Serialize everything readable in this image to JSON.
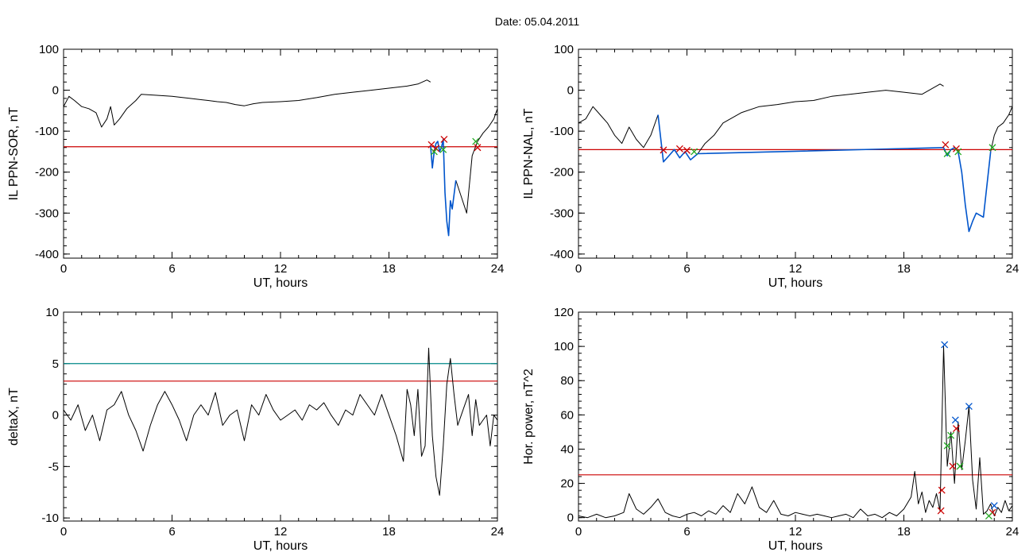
{
  "title": "Date:  05.04.2011",
  "chart_data": [
    {
      "type": "line",
      "title": "",
      "xlabel": "UT, hours",
      "ylabel": "IL PPN-SOR, nT",
      "xlim": [
        0,
        24
      ],
      "ylim": [
        -410,
        100
      ],
      "xticks": [
        0,
        6,
        12,
        18,
        24
      ],
      "yticks": [
        -400,
        -300,
        -200,
        -100,
        0,
        100
      ],
      "grid": false,
      "series": [
        {
          "color": "#000000",
          "x": [
            0,
            0.3,
            0.6,
            1,
            1.4,
            1.8,
            2.1,
            2.4,
            2.6,
            2.8,
            3.1,
            3.5,
            4,
            4.3,
            5,
            6,
            7,
            8,
            8.5,
            9,
            9.5,
            10,
            10.5,
            11,
            12,
            13,
            14,
            15,
            16,
            17,
            18,
            19,
            19.6,
            20.1,
            20.3
          ],
          "y": [
            -40,
            -15,
            -25,
            -40,
            -45,
            -55,
            -90,
            -70,
            -40,
            -85,
            -70,
            -45,
            -25,
            -10,
            -12,
            -15,
            -20,
            -25,
            -28,
            -30,
            -35,
            -38,
            -33,
            -30,
            -28,
            -25,
            -18,
            -10,
            -5,
            0,
            5,
            10,
            15,
            25,
            20
          ]
        },
        {
          "color": "#000000",
          "x": [
            21.7,
            22.0,
            22.3,
            22.6,
            22.9,
            23.2,
            23.5,
            23.8,
            24
          ],
          "y": [
            -220,
            -260,
            -300,
            -160,
            -125,
            -105,
            -90,
            -70,
            -45
          ]
        }
      ],
      "highlight": {
        "color": "#0055cc",
        "x": [
          20.3,
          20.4,
          20.5,
          20.6,
          20.7,
          20.8,
          20.9,
          21.0,
          21.1,
          21.2,
          21.3,
          21.4,
          21.5,
          21.7
        ],
        "y": [
          -135,
          -190,
          -150,
          -130,
          -125,
          -150,
          -140,
          -120,
          -250,
          -320,
          -355,
          -270,
          -290,
          -220
        ]
      },
      "threshold": {
        "color": "#cc0000",
        "value": -138
      },
      "markers": [
        {
          "color": "#cc0000",
          "x": 20.35,
          "y": -133
        },
        {
          "color": "#cc0000",
          "x": 20.6,
          "y": -142
        },
        {
          "color": "#cc0000",
          "x": 21.05,
          "y": -120
        },
        {
          "color": "#cc0000",
          "x": 22.9,
          "y": -140
        },
        {
          "color": "#22aa22",
          "x": 20.5,
          "y": -150
        },
        {
          "color": "#22aa22",
          "x": 21.0,
          "y": -145
        },
        {
          "color": "#22aa22",
          "x": 22.8,
          "y": -125
        }
      ]
    },
    {
      "type": "line",
      "title": "",
      "xlabel": "UT, hours",
      "ylabel": "IL PPN-NAL, nT",
      "xlim": [
        0,
        24
      ],
      "ylim": [
        -410,
        100
      ],
      "xticks": [
        0,
        6,
        12,
        18,
        24
      ],
      "yticks": [
        -400,
        -300,
        -200,
        -100,
        0,
        100
      ],
      "grid": false,
      "series": [
        {
          "color": "#000000",
          "x": [
            0,
            0.4,
            0.8,
            1.2,
            1.6,
            2.0,
            2.4,
            2.8,
            3.2,
            3.6,
            4.0,
            4.4
          ],
          "y": [
            -80,
            -70,
            -40,
            -60,
            -80,
            -110,
            -130,
            -90,
            -120,
            -140,
            -110,
            -60
          ]
        },
        {
          "color": "#000000",
          "x": [
            6.6,
            7.0,
            7.5,
            8,
            9,
            10,
            11,
            12,
            13,
            14,
            15,
            16,
            17,
            18,
            19,
            20,
            20.2
          ],
          "y": [
            -155,
            -130,
            -110,
            -80,
            -55,
            -40,
            -35,
            -28,
            -25,
            -15,
            -10,
            -5,
            0,
            -5,
            -10,
            15,
            10
          ]
        },
        {
          "color": "#000000",
          "x": [
            22.8,
            23.0,
            23.2,
            23.5,
            23.8,
            24
          ],
          "y": [
            -150,
            -110,
            -90,
            -80,
            -60,
            -40
          ]
        }
      ],
      "highlight": {
        "color": "#0055cc",
        "x": [
          4.4,
          4.7,
          5.0,
          5.3,
          5.6,
          5.9,
          6.2,
          6.6,
          20.2,
          20.4,
          20.6,
          20.8,
          21.0,
          21.2,
          21.4,
          21.6,
          21.8,
          22.0,
          22.4,
          22.8
        ],
        "y": [
          -60,
          -175,
          -160,
          -145,
          -165,
          -150,
          -170,
          -155,
          -140,
          -160,
          -145,
          -140,
          -150,
          -200,
          -280,
          -345,
          -320,
          -300,
          -310,
          -150
        ]
      },
      "threshold": {
        "color": "#cc0000",
        "value": -145
      },
      "markers": [
        {
          "color": "#cc0000",
          "x": 4.7,
          "y": -146
        },
        {
          "color": "#cc0000",
          "x": 5.6,
          "y": -143
        },
        {
          "color": "#cc0000",
          "x": 6.0,
          "y": -147
        },
        {
          "color": "#cc0000",
          "x": 20.3,
          "y": -133
        },
        {
          "color": "#cc0000",
          "x": 20.9,
          "y": -143
        },
        {
          "color": "#22aa22",
          "x": 6.4,
          "y": -150
        },
        {
          "color": "#22aa22",
          "x": 20.4,
          "y": -155
        },
        {
          "color": "#22aa22",
          "x": 21.0,
          "y": -150
        },
        {
          "color": "#22aa22",
          "x": 22.9,
          "y": -140
        }
      ]
    },
    {
      "type": "line",
      "title": "",
      "xlabel": "UT, hours",
      "ylabel": "deltaX, nT",
      "xlim": [
        0,
        24
      ],
      "ylim": [
        -10.3,
        10
      ],
      "xticks": [
        0,
        6,
        12,
        18,
        24
      ],
      "yticks": [
        -10,
        -5,
        0,
        5,
        10
      ],
      "yticklabels": [
        "-10",
        "-5",
        "0",
        "5",
        "10"
      ],
      "grid": false,
      "series": [
        {
          "color": "#000000",
          "x": [
            0,
            0.4,
            0.8,
            1.2,
            1.6,
            2.0,
            2.4,
            2.8,
            3.2,
            3.6,
            4.0,
            4.4,
            4.8,
            5.2,
            5.6,
            6.0,
            6.4,
            6.8,
            7.2,
            7.6,
            8.0,
            8.4,
            8.8,
            9.2,
            9.6,
            10.0,
            10.4,
            10.8,
            11.2,
            11.6,
            12.0,
            12.4,
            12.8,
            13.2,
            13.6,
            14.0,
            14.4,
            14.8,
            15.2,
            15.6,
            16.0,
            16.4,
            16.8,
            17.2,
            17.6,
            18.0,
            18.4,
            18.8,
            19.0,
            19.2,
            19.4,
            19.6,
            19.8,
            20.0,
            20.2,
            20.4,
            20.6,
            20.8,
            21.0,
            21.2,
            21.4,
            21.6,
            21.8,
            22.0,
            22.2,
            22.4,
            22.6,
            22.8,
            23.0,
            23.2,
            23.4,
            23.6,
            23.8,
            24
          ],
          "y": [
            0.5,
            -0.5,
            1,
            -1.5,
            0,
            -2.5,
            0.5,
            1,
            2.3,
            0,
            -1.5,
            -3.5,
            -1,
            1,
            2.3,
            1,
            -0.5,
            -2.5,
            0,
            1,
            0,
            2.2,
            -1,
            0,
            0.5,
            -2.5,
            1,
            0,
            2,
            0.5,
            -0.5,
            0,
            0.5,
            -0.5,
            1,
            0.5,
            1.2,
            0,
            -1,
            0.5,
            0,
            2,
            1,
            0,
            2,
            0,
            -2,
            -4.5,
            2.5,
            1,
            -2,
            2.5,
            -4,
            -3,
            6.5,
            -2,
            -6,
            -7.8,
            -3,
            3,
            5.5,
            2,
            -1,
            0,
            1,
            2,
            -2,
            1.5,
            -1,
            -0.5,
            0,
            -3,
            0,
            -0.5
          ]
        }
      ],
      "thresholds": [
        {
          "color": "#008888",
          "value": 5
        },
        {
          "color": "#cc0000",
          "value": 3.3
        }
      ]
    },
    {
      "type": "line",
      "title": "",
      "xlabel": "UT, hours",
      "ylabel": "Hor. power, nT^2",
      "xlim": [
        0,
        24
      ],
      "ylim": [
        -2,
        120
      ],
      "xticks": [
        0,
        6,
        12,
        18,
        24
      ],
      "yticks": [
        0,
        20,
        40,
        60,
        80,
        100,
        120
      ],
      "grid": false,
      "series": [
        {
          "color": "#000000",
          "x": [
            0,
            0.5,
            1,
            1.5,
            2,
            2.5,
            2.8,
            3.2,
            3.6,
            4.0,
            4.4,
            4.8,
            5.2,
            5.6,
            6,
            6.4,
            6.8,
            7.2,
            7.6,
            8.0,
            8.4,
            8.8,
            9.2,
            9.6,
            10.0,
            10.4,
            10.8,
            11.2,
            11.6,
            12,
            12.4,
            12.8,
            13.2,
            13.6,
            14,
            14.4,
            14.8,
            15.2,
            15.6,
            16,
            16.4,
            16.8,
            17.2,
            17.6,
            18.0,
            18.4,
            18.6,
            18.8,
            19.0,
            19.2,
            19.4,
            19.6,
            19.8,
            20.0,
            20.2,
            20.4,
            20.6,
            20.8,
            21.0,
            21.2,
            21.4,
            21.6,
            21.8,
            22.0,
            22.2,
            22.4,
            22.6,
            22.8,
            23.0,
            23.2,
            23.4,
            23.6,
            23.8,
            24
          ],
          "y": [
            1,
            0,
            2,
            0,
            1,
            3,
            14,
            5,
            2,
            6,
            11,
            3,
            1,
            0,
            2,
            3,
            1,
            4,
            2,
            7,
            3,
            14,
            8,
            18,
            6,
            3,
            10,
            2,
            1,
            3,
            2,
            1,
            2,
            1,
            0,
            1,
            2,
            0,
            5,
            1,
            2,
            0,
            3,
            1,
            5,
            12,
            27,
            8,
            15,
            3,
            10,
            6,
            14,
            4,
            100,
            30,
            50,
            20,
            56,
            28,
            45,
            65,
            22,
            5,
            35,
            2,
            4,
            8,
            1,
            6,
            3,
            10,
            4,
            7
          ]
        }
      ],
      "threshold": {
        "color": "#cc0000",
        "value": 25
      },
      "markers": [
        {
          "color": "#0055cc",
          "x": 20.25,
          "y": 101
        },
        {
          "color": "#0055cc",
          "x": 20.85,
          "y": 57
        },
        {
          "color": "#0055cc",
          "x": 21.6,
          "y": 65
        },
        {
          "color": "#0055cc",
          "x": 23.0,
          "y": 7
        },
        {
          "color": "#cc0000",
          "x": 20.05,
          "y": 4
        },
        {
          "color": "#cc0000",
          "x": 20.1,
          "y": 16
        },
        {
          "color": "#cc0000",
          "x": 20.7,
          "y": 30
        },
        {
          "color": "#cc0000",
          "x": 20.9,
          "y": 52
        },
        {
          "color": "#cc0000",
          "x": 22.9,
          "y": 3
        },
        {
          "color": "#22aa22",
          "x": 20.4,
          "y": 42
        },
        {
          "color": "#22aa22",
          "x": 20.6,
          "y": 48
        },
        {
          "color": "#22aa22",
          "x": 21.1,
          "y": 30
        },
        {
          "color": "#22aa22",
          "x": 22.7,
          "y": 1
        }
      ]
    }
  ]
}
